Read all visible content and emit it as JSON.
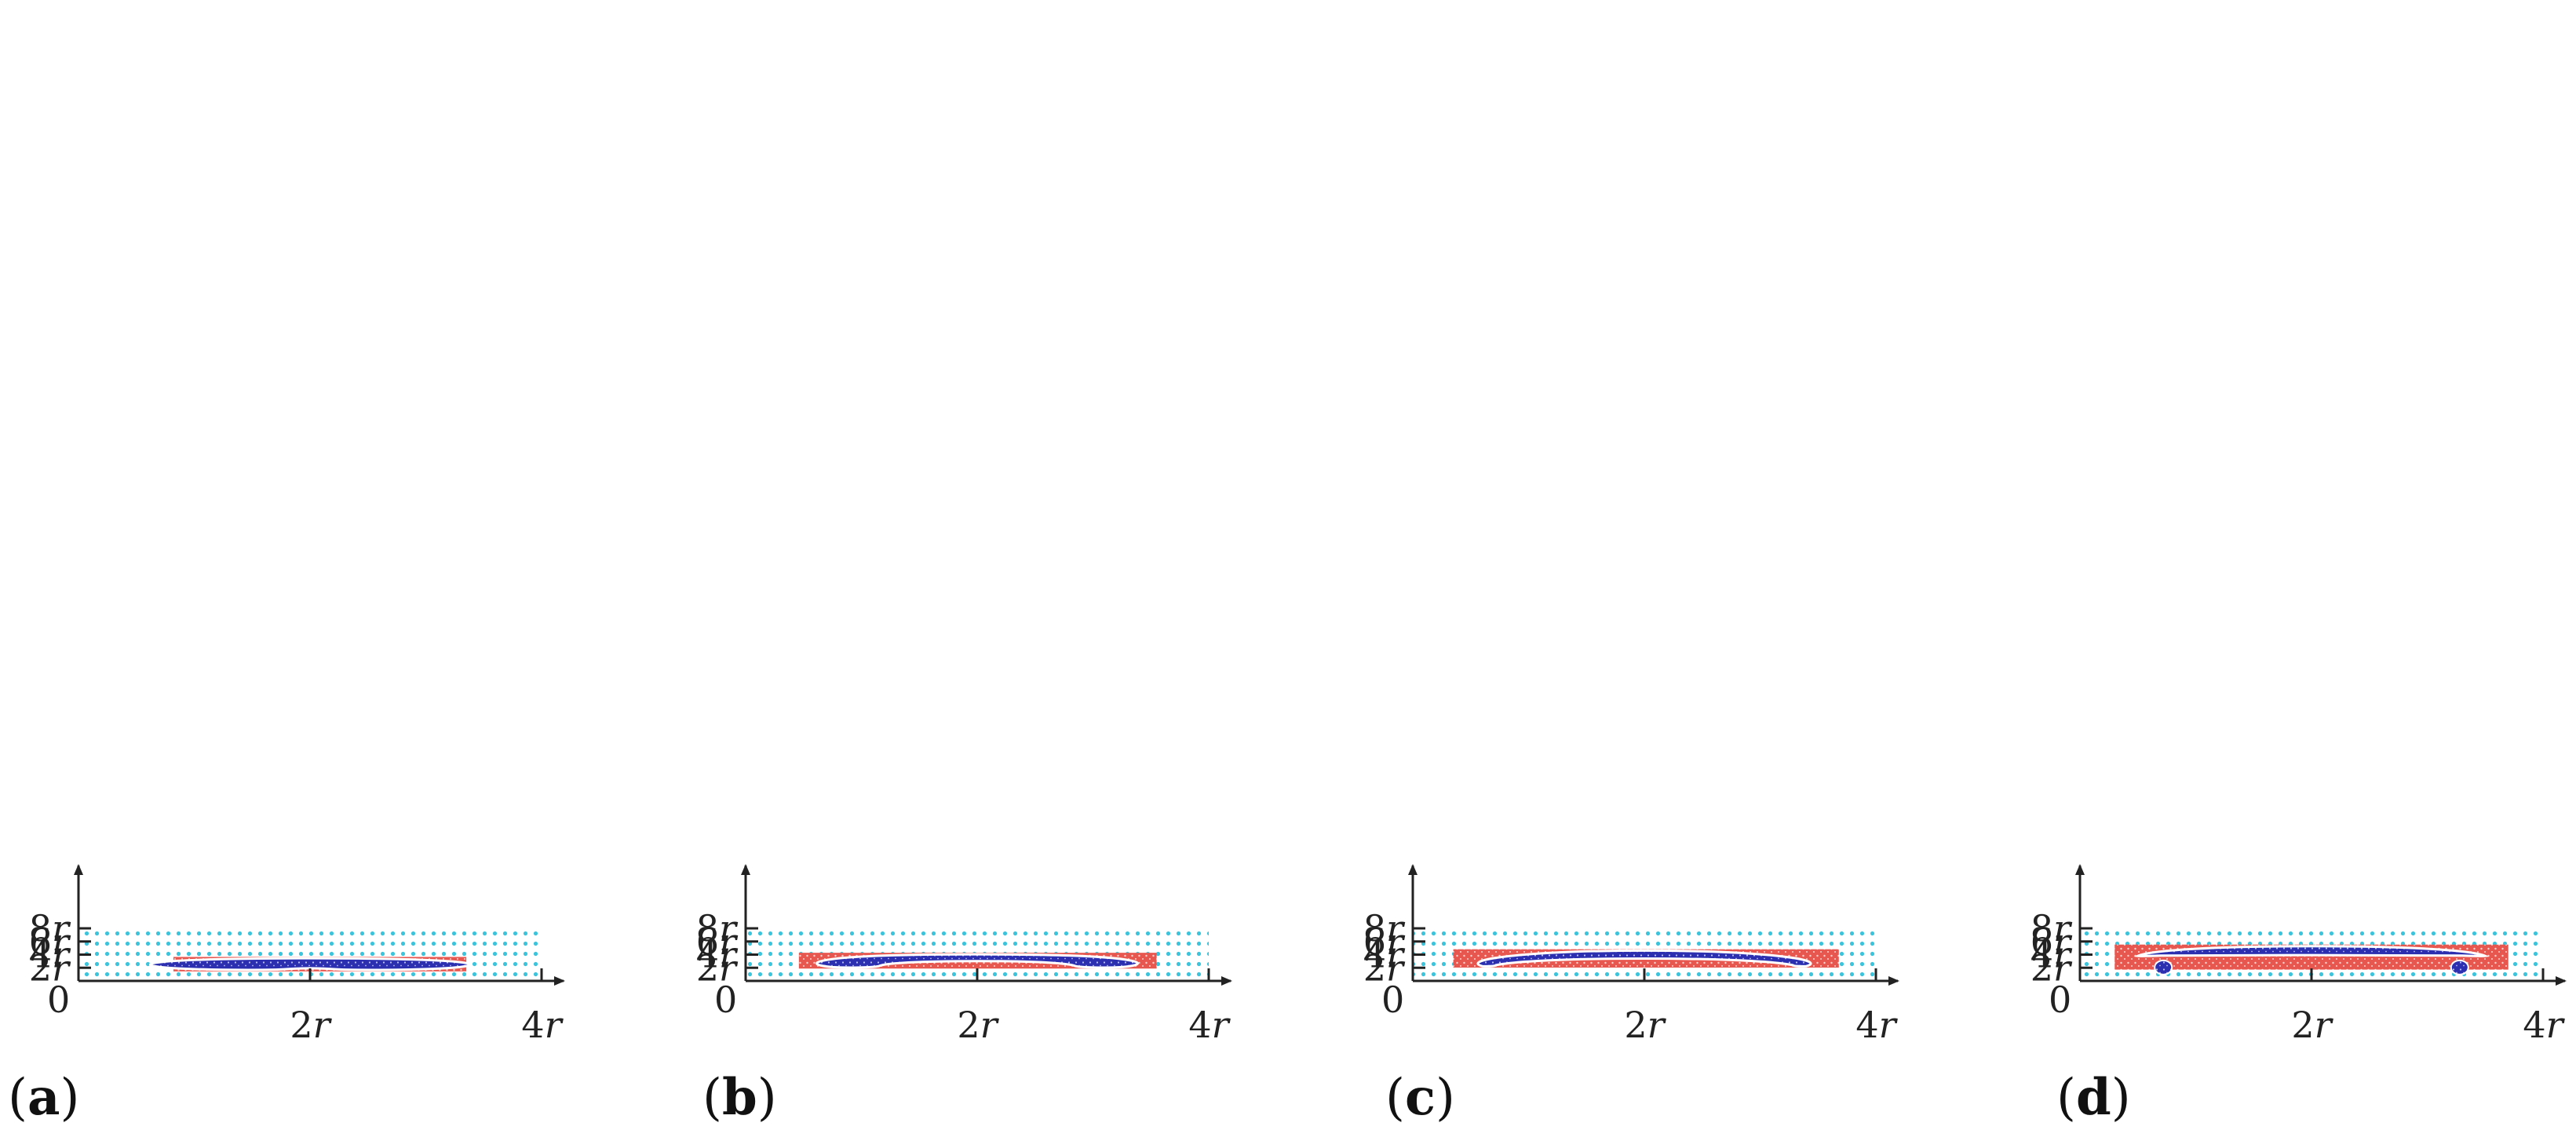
{
  "figure": {
    "panels": [
      {
        "label_open": "(",
        "label_letter": "a",
        "label_close": ")",
        "red_region": {
          "x": [
            0.82,
            3.35
          ],
          "y": [
            1.45,
            3.65
          ]
        },
        "blue_shape": "blob"
      },
      {
        "label_open": "(",
        "label_letter": "b",
        "label_close": ")",
        "red_region": {
          "x": [
            0.46,
            3.55
          ],
          "y": [
            1.88,
            4.28
          ]
        },
        "blue_shape": "crescent"
      },
      {
        "label_open": "(",
        "label_letter": "c",
        "label_close": ")",
        "red_region": {
          "x": [
            0.35,
            3.68
          ],
          "y": [
            2.03,
            4.82
          ]
        },
        "blue_shape": "dome"
      },
      {
        "label_open": "(",
        "label_letter": "d",
        "label_close": ")",
        "red_region": {
          "x": [
            0.3,
            3.7
          ],
          "y": [
            1.72,
            5.53
          ]
        },
        "blue_shape": "cap"
      }
    ],
    "axes": {
      "origin_label": "0",
      "x_ticks": [
        {
          "value": 2,
          "num": "2",
          "var": "r"
        },
        {
          "value": 4,
          "num": "4",
          "var": "r"
        }
      ],
      "y_ticks": [
        {
          "value": 2,
          "num": "2",
          "var": "r"
        },
        {
          "value": 4,
          "num": "4",
          "var": "r"
        },
        {
          "value": 6,
          "num": "6",
          "var": "r"
        },
        {
          "value": 8,
          "num": "8",
          "var": "r"
        }
      ],
      "x_range": [
        0,
        4
      ],
      "y_range": [
        0,
        8
      ]
    },
    "colors": {
      "background_particles": "#3cc4dc",
      "red_particles": "#e8574f",
      "blue_particles": "#2b2fb0",
      "axis": "#222222"
    }
  }
}
